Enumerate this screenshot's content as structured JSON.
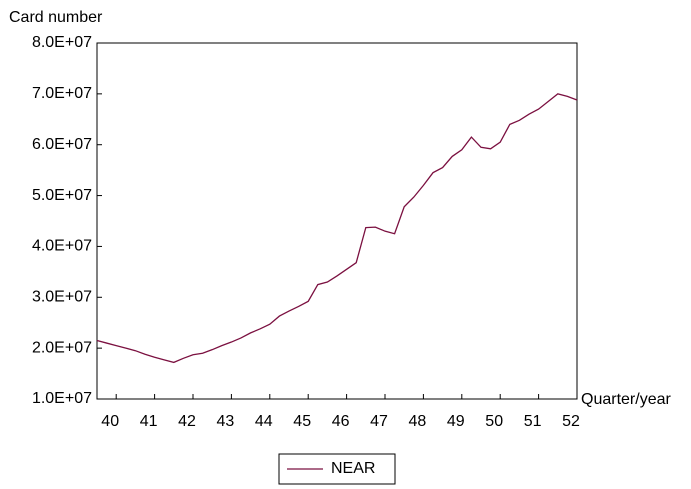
{
  "chart_data": {
    "type": "line",
    "y_label": "Card number",
    "x_label": "Quarter/year",
    "categories": [
      null,
      null,
      "40",
      null,
      null,
      null,
      "41",
      null,
      null,
      null,
      "42",
      null,
      null,
      null,
      "43",
      null,
      null,
      null,
      "44",
      null,
      null,
      null,
      "45",
      null,
      null,
      null,
      "46",
      null,
      null,
      null,
      "47",
      null,
      null,
      null,
      "48",
      null,
      null,
      null,
      "49",
      null,
      null,
      null,
      "50",
      null,
      null,
      null,
      "51",
      null,
      null,
      null,
      "52"
    ],
    "series": [
      {
        "name": "NEAR",
        "color": "#7b1040",
        "values": [
          21500000,
          21000000,
          20500000,
          20000000,
          19500000,
          18800000,
          18200000,
          17700000,
          17200000,
          18000000,
          18700000,
          19000000,
          19700000,
          20500000,
          21200000,
          22000000,
          23000000,
          23800000,
          24700000,
          26300000,
          27300000,
          28200000,
          29200000,
          32500000,
          33000000,
          34200000,
          35500000,
          36800000,
          43700000,
          43800000,
          43000000,
          42500000,
          47800000,
          49700000,
          52000000,
          54500000,
          55500000,
          57700000,
          59000000,
          61500000,
          59500000,
          59200000,
          60500000,
          64000000,
          64800000,
          66000000,
          67000000,
          68500000,
          70000000,
          69500000,
          68800000
        ]
      }
    ],
    "ylim": [
      10000000,
      80000000
    ],
    "yticks": [
      {
        "value": 10000000,
        "label": "1.0E+07"
      },
      {
        "value": 20000000,
        "label": "2.0E+07"
      },
      {
        "value": 30000000,
        "label": "3.0E+07"
      },
      {
        "value": 40000000,
        "label": "4.0E+07"
      },
      {
        "value": 50000000,
        "label": "5.0E+07"
      },
      {
        "value": 60000000,
        "label": "6.0E+07"
      },
      {
        "value": 70000000,
        "label": "7.0E+07"
      },
      {
        "value": 80000000,
        "label": "8.0E+07"
      }
    ],
    "grid": false
  }
}
